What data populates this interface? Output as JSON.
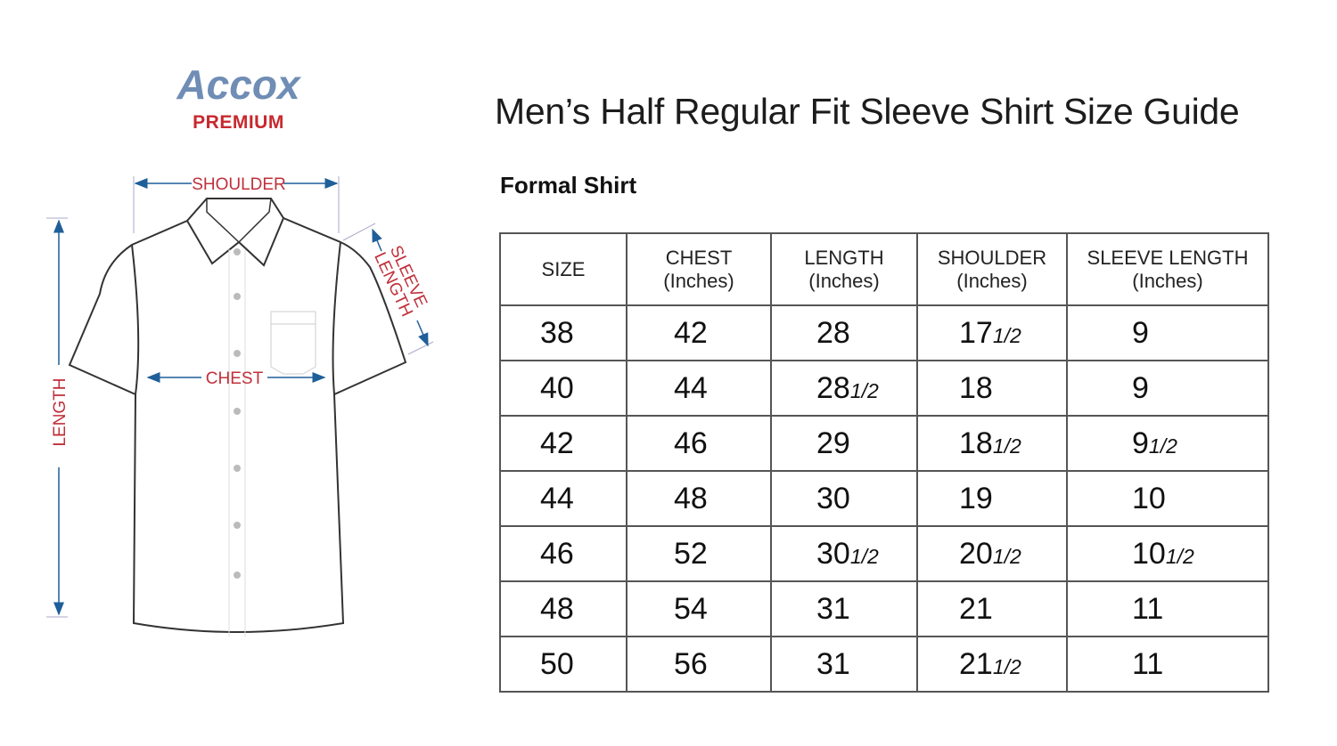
{
  "brand": {
    "name": "Accox",
    "tagline": "PREMIUM",
    "name_color": "#6f8db5",
    "tagline_color": "#c8282e"
  },
  "title": "Men’s Half Regular Fit Sleeve Shirt Size Guide",
  "subtitle": "Formal Shirt",
  "diagram": {
    "labels": {
      "shoulder": "SHOULDER",
      "sleeve": "SLEEVE",
      "sleeve2": "LENGTH",
      "chest": "CHEST",
      "length": "LENGTH"
    },
    "arrow_color": "#1f5f99",
    "label_color": "#c0303a"
  },
  "table": {
    "headers": [
      {
        "line1": "SIZE",
        "line2": ""
      },
      {
        "line1": "CHEST",
        "line2": "(Inches)"
      },
      {
        "line1": "LENGTH",
        "line2": "(Inches)"
      },
      {
        "line1": "SHOULDER",
        "line2": "(Inches)"
      },
      {
        "line1": "SLEEVE LENGTH",
        "line2": "(Inches)"
      }
    ],
    "rows": [
      [
        {
          "w": "38",
          "f": ""
        },
        {
          "w": "42",
          "f": ""
        },
        {
          "w": "28",
          "f": ""
        },
        {
          "w": "17",
          "f": "1/2"
        },
        {
          "w": "9",
          "f": ""
        }
      ],
      [
        {
          "w": "40",
          "f": ""
        },
        {
          "w": "44",
          "f": ""
        },
        {
          "w": "28",
          "f": "1/2"
        },
        {
          "w": "18",
          "f": ""
        },
        {
          "w": "9",
          "f": ""
        }
      ],
      [
        {
          "w": "42",
          "f": ""
        },
        {
          "w": "46",
          "f": ""
        },
        {
          "w": "29",
          "f": ""
        },
        {
          "w": "18",
          "f": "1/2"
        },
        {
          "w": "9",
          "f": "1/2"
        }
      ],
      [
        {
          "w": "44",
          "f": ""
        },
        {
          "w": "48",
          "f": ""
        },
        {
          "w": "30",
          "f": ""
        },
        {
          "w": "19",
          "f": ""
        },
        {
          "w": "10",
          "f": ""
        }
      ],
      [
        {
          "w": "46",
          "f": ""
        },
        {
          "w": "52",
          "f": ""
        },
        {
          "w": "30",
          "f": "1/2"
        },
        {
          "w": "20",
          "f": "1/2"
        },
        {
          "w": "10",
          "f": "1/2"
        }
      ],
      [
        {
          "w": "48",
          "f": ""
        },
        {
          "w": "54",
          "f": ""
        },
        {
          "w": "31",
          "f": ""
        },
        {
          "w": "21",
          "f": ""
        },
        {
          "w": "11",
          "f": ""
        }
      ],
      [
        {
          "w": "50",
          "f": ""
        },
        {
          "w": "56",
          "f": ""
        },
        {
          "w": "31",
          "f": ""
        },
        {
          "w": "21",
          "f": "1/2"
        },
        {
          "w": "11",
          "f": ""
        }
      ]
    ]
  }
}
